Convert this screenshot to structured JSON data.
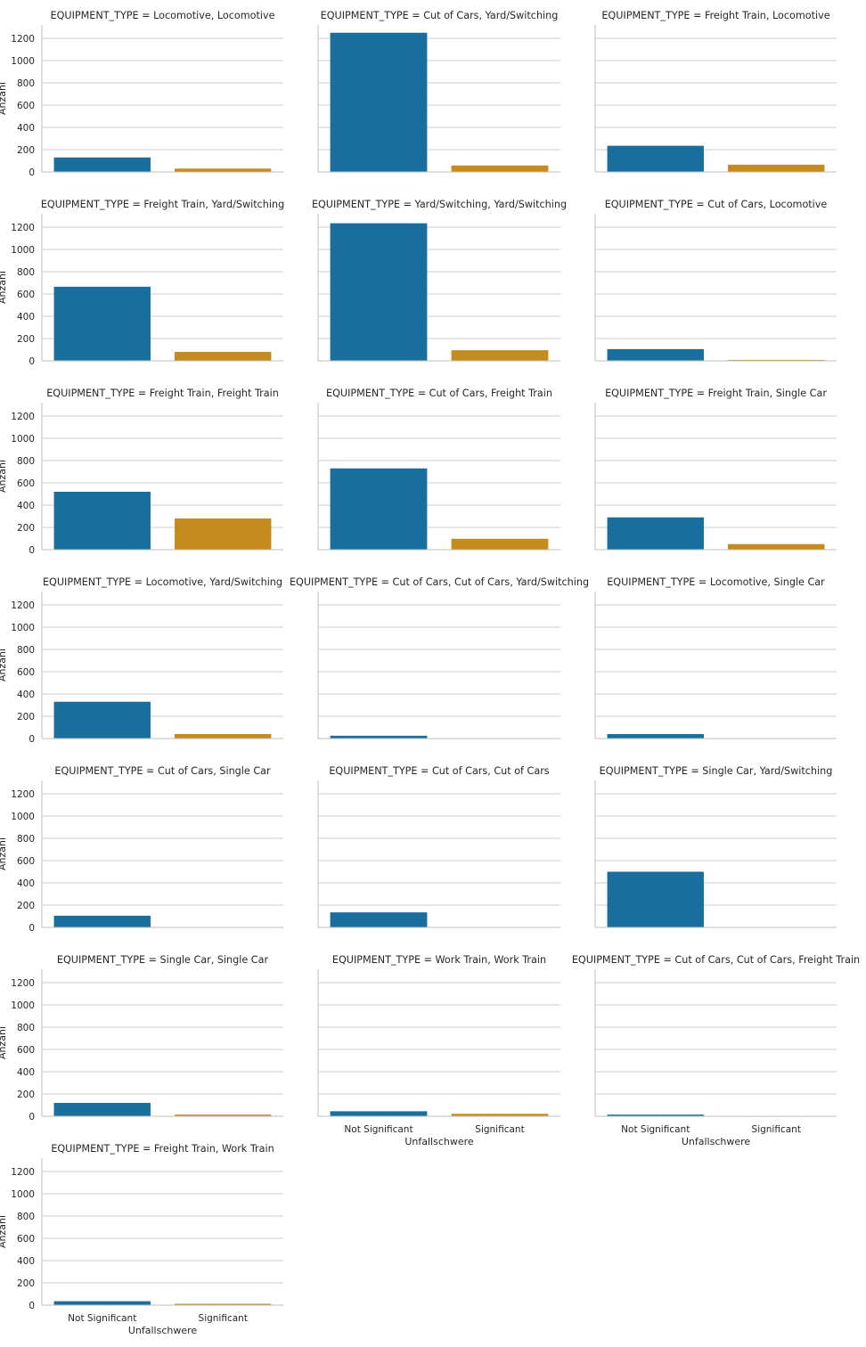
{
  "chart_data": {
    "type": "bar",
    "facet_variable": "EQUIPMENT_TYPE",
    "categories": [
      "Not Significant",
      "Significant"
    ],
    "xlabel": "Unfallschwere",
    "ylabel": "Anzahl",
    "ylim": [
      0,
      1320
    ],
    "yticks": [
      0,
      200,
      400,
      600,
      800,
      1000,
      1200
    ],
    "grid": "horizontal",
    "colors": {
      "Not Significant": "#1a6e9e",
      "Significant": "#c68b1e"
    },
    "facets": [
      {
        "title": "EQUIPMENT_TYPE = Locomotive, Locomotive",
        "values": [
          130,
          30
        ]
      },
      {
        "title": "EQUIPMENT_TYPE = Cut of Cars, Yard/Switching",
        "values": [
          1250,
          58
        ]
      },
      {
        "title": "EQUIPMENT_TYPE = Freight Train, Locomotive",
        "values": [
          235,
          65
        ]
      },
      {
        "title": "EQUIPMENT_TYPE = Freight Train, Yard/Switching",
        "values": [
          665,
          80
        ]
      },
      {
        "title": "EQUIPMENT_TYPE = Yard/Switching, Yard/Switching",
        "values": [
          1235,
          95
        ]
      },
      {
        "title": "EQUIPMENT_TYPE = Cut of Cars, Locomotive",
        "values": [
          105,
          8
        ]
      },
      {
        "title": "EQUIPMENT_TYPE = Freight Train, Freight Train",
        "values": [
          520,
          280
        ]
      },
      {
        "title": "EQUIPMENT_TYPE = Cut of Cars, Freight Train",
        "values": [
          730,
          98
        ]
      },
      {
        "title": "EQUIPMENT_TYPE = Freight Train, Single Car",
        "values": [
          290,
          50
        ]
      },
      {
        "title": "EQUIPMENT_TYPE = Locomotive, Yard/Switching",
        "values": [
          330,
          40
        ]
      },
      {
        "title": "EQUIPMENT_TYPE = Cut of Cars, Cut of Cars, Yard/Switching",
        "values": [
          25,
          0
        ]
      },
      {
        "title": "EQUIPMENT_TYPE = Locomotive, Single Car",
        "values": [
          40,
          0
        ]
      },
      {
        "title": "EQUIPMENT_TYPE = Cut of Cars, Single Car",
        "values": [
          105,
          0
        ]
      },
      {
        "title": "EQUIPMENT_TYPE = Cut of Cars, Cut of Cars",
        "values": [
          135,
          0
        ]
      },
      {
        "title": "EQUIPMENT_TYPE = Single Car, Yard/Switching",
        "values": [
          500,
          0
        ]
      },
      {
        "title": "EQUIPMENT_TYPE = Single Car, Single Car",
        "values": [
          120,
          15
        ]
      },
      {
        "title": "EQUIPMENT_TYPE = Work Train, Work Train",
        "values": [
          45,
          22
        ]
      },
      {
        "title": "EQUIPMENT_TYPE = Cut of Cars, Cut of Cars, Freight Train",
        "values": [
          15,
          0
        ]
      },
      {
        "title": "EQUIPMENT_TYPE = Freight Train, Work Train",
        "values": [
          35,
          12
        ]
      }
    ]
  }
}
